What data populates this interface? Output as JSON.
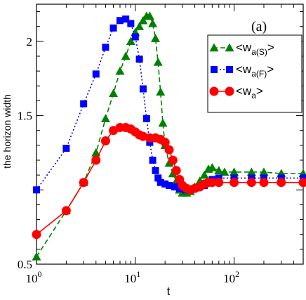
{
  "chart_data": {
    "type": "line",
    "panel_label": "(a)",
    "xlabel": "t",
    "ylabel": "the horizon width",
    "xscale": "log",
    "xlim": [
      1,
      500
    ],
    "ylim": [
      0.5,
      2.25
    ],
    "x_ticks": [
      {
        "value": 1,
        "base": "10",
        "exp": "0"
      },
      {
        "value": 10,
        "base": "10",
        "exp": "1"
      },
      {
        "value": 100,
        "base": "10",
        "exp": "2"
      }
    ],
    "y_ticks": [
      {
        "value": 0.5,
        "label": "0.5"
      },
      {
        "value": 1.5,
        "label": "1.5"
      },
      {
        "value": 2.0,
        "label": "2"
      }
    ],
    "legend_position": "top-right",
    "series": [
      {
        "name_main": "<w",
        "name_sub": "a(S)",
        "name_end": ">",
        "color": "#008000",
        "marker": "triangle",
        "line": "dashed",
        "points": [
          [
            1,
            0.55
          ],
          [
            2,
            0.86
          ],
          [
            3,
            1.05
          ],
          [
            4,
            1.25
          ],
          [
            5,
            1.48
          ],
          [
            6,
            1.65
          ],
          [
            7,
            1.8
          ],
          [
            8,
            1.9
          ],
          [
            9,
            2.0
          ],
          [
            10,
            2.06
          ],
          [
            11,
            2.1
          ],
          [
            12,
            2.14
          ],
          [
            13,
            2.17
          ],
          [
            14,
            2.17
          ],
          [
            15,
            2.12
          ],
          [
            16,
            2.02
          ],
          [
            17,
            1.86
          ],
          [
            18,
            1.66
          ],
          [
            19,
            1.45
          ],
          [
            20,
            1.3
          ],
          [
            22,
            1.18
          ],
          [
            24,
            1.11
          ],
          [
            26,
            1.06
          ],
          [
            28,
            1.0
          ],
          [
            30,
            0.98
          ],
          [
            33,
            0.98
          ],
          [
            36,
            0.99
          ],
          [
            40,
            1.02
          ],
          [
            45,
            1.06
          ],
          [
            50,
            1.1
          ],
          [
            55,
            1.14
          ],
          [
            60,
            1.15
          ],
          [
            70,
            1.13
          ],
          [
            80,
            1.12
          ],
          [
            100,
            1.12
          ],
          [
            150,
            1.12
          ],
          [
            200,
            1.12
          ],
          [
            300,
            1.11
          ],
          [
            500,
            1.11
          ]
        ]
      },
      {
        "name_main": "<w",
        "name_sub": "a(F)",
        "name_end": ">",
        "color": "#0000FF",
        "marker": "square",
        "line": "dotted",
        "points": [
          [
            1,
            1.0
          ],
          [
            2,
            1.28
          ],
          [
            3,
            1.58
          ],
          [
            4,
            1.78
          ],
          [
            5,
            1.96
          ],
          [
            6,
            2.09
          ],
          [
            7,
            2.14
          ],
          [
            8,
            2.15
          ],
          [
            9,
            2.12
          ],
          [
            10,
            2.03
          ],
          [
            11,
            1.88
          ],
          [
            12,
            1.68
          ],
          [
            13,
            1.48
          ],
          [
            14,
            1.32
          ],
          [
            15,
            1.2
          ],
          [
            16,
            1.13
          ],
          [
            17,
            1.08
          ],
          [
            18,
            1.05
          ],
          [
            20,
            1.04
          ],
          [
            22,
            1.03
          ],
          [
            25,
            1.02
          ],
          [
            28,
            1.01
          ],
          [
            32,
            1.0
          ],
          [
            36,
            1.0
          ],
          [
            40,
            1.01
          ],
          [
            50,
            1.03
          ],
          [
            60,
            1.07
          ],
          [
            70,
            1.08
          ],
          [
            100,
            1.08
          ],
          [
            150,
            1.08
          ],
          [
            200,
            1.08
          ],
          [
            300,
            1.08
          ],
          [
            500,
            1.08
          ]
        ]
      },
      {
        "name_main": "<w",
        "name_sub": "a",
        "name_end": ">",
        "color": "#FF0000",
        "marker": "circle",
        "line": "solid",
        "points": [
          [
            1,
            0.7
          ],
          [
            2,
            0.86
          ],
          [
            3,
            1.05
          ],
          [
            4,
            1.2
          ],
          [
            5,
            1.33
          ],
          [
            6,
            1.4
          ],
          [
            7,
            1.42
          ],
          [
            8,
            1.42
          ],
          [
            9,
            1.41
          ],
          [
            10,
            1.39
          ],
          [
            11,
            1.37
          ],
          [
            12,
            1.36
          ],
          [
            14,
            1.35
          ],
          [
            16,
            1.35
          ],
          [
            18,
            1.34
          ],
          [
            20,
            1.32
          ],
          [
            22,
            1.27
          ],
          [
            24,
            1.2
          ],
          [
            26,
            1.13
          ],
          [
            28,
            1.07
          ],
          [
            30,
            1.03
          ],
          [
            33,
            1.01
          ],
          [
            36,
            1.0
          ],
          [
            40,
            1.01
          ],
          [
            45,
            1.02
          ],
          [
            50,
            1.04
          ],
          [
            55,
            1.05
          ],
          [
            60,
            1.05
          ],
          [
            70,
            1.05
          ],
          [
            100,
            1.05
          ],
          [
            150,
            1.05
          ],
          [
            200,
            1.05
          ],
          [
            300,
            1.05
          ],
          [
            500,
            1.05
          ]
        ]
      }
    ]
  }
}
